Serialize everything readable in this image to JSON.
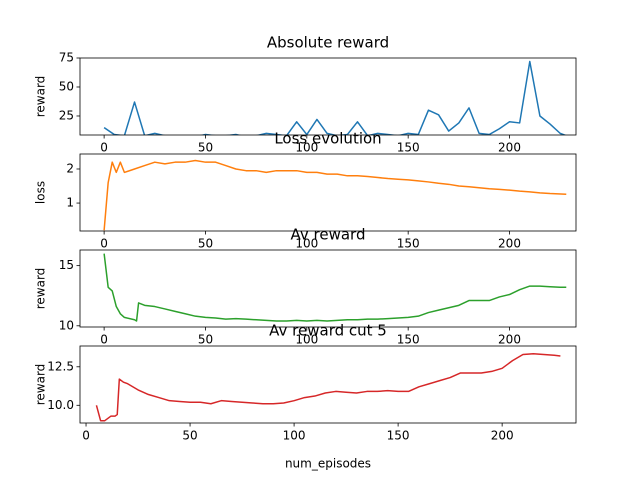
{
  "chart_data": [
    {
      "type": "line",
      "title": "Absolute reward",
      "ylabel": "reward",
      "color": "#1f77b4",
      "x": [
        0,
        5,
        10,
        15,
        20,
        25,
        30,
        35,
        40,
        45,
        50,
        55,
        60,
        65,
        70,
        75,
        80,
        85,
        90,
        95,
        100,
        105,
        110,
        115,
        120,
        125,
        130,
        135,
        140,
        145,
        150,
        155,
        160,
        165,
        170,
        175,
        180,
        185,
        190,
        195,
        200,
        205,
        210,
        215,
        220,
        225,
        228
      ],
      "values": [
        15,
        9,
        8,
        37,
        8,
        10,
        8,
        8,
        8,
        7,
        9,
        8,
        8,
        9,
        7,
        8,
        10,
        9,
        8,
        20,
        9,
        22,
        10,
        8,
        9,
        20,
        8,
        10,
        9,
        8,
        10,
        9,
        30,
        26,
        12,
        19,
        32,
        10,
        9,
        14,
        20,
        19,
        72,
        25,
        18,
        10,
        8
      ],
      "xlim": [
        -11.9,
        232.8
      ],
      "ylim": [
        8.6,
        75
      ],
      "xticks": [
        0,
        50,
        100,
        150,
        200
      ],
      "yticks": [
        25,
        50,
        75
      ]
    },
    {
      "type": "line",
      "title": "Loss evolution",
      "ylabel": "loss",
      "color": "#ff7f0e",
      "x": [
        0,
        2,
        4,
        6,
        8,
        10,
        15,
        20,
        25,
        30,
        35,
        40,
        45,
        50,
        55,
        60,
        65,
        70,
        75,
        80,
        85,
        90,
        95,
        100,
        105,
        110,
        115,
        120,
        125,
        130,
        135,
        140,
        145,
        150,
        155,
        160,
        165,
        170,
        175,
        180,
        185,
        190,
        195,
        200,
        205,
        210,
        215,
        220,
        228
      ],
      "values": [
        0.2,
        1.6,
        2.2,
        1.9,
        2.2,
        1.9,
        2.0,
        2.1,
        2.2,
        2.15,
        2.2,
        2.2,
        2.25,
        2.2,
        2.2,
        2.1,
        2.0,
        1.95,
        1.95,
        1.9,
        1.95,
        1.95,
        1.95,
        1.9,
        1.9,
        1.85,
        1.85,
        1.8,
        1.8,
        1.78,
        1.75,
        1.72,
        1.7,
        1.68,
        1.65,
        1.62,
        1.58,
        1.55,
        1.5,
        1.48,
        1.45,
        1.42,
        1.4,
        1.38,
        1.35,
        1.33,
        1.3,
        1.28,
        1.26
      ],
      "xlim": [
        -11.9,
        232.8
      ],
      "ylim": [
        0.18,
        2.44
      ],
      "xticks": [
        0,
        50,
        100,
        150,
        200
      ],
      "yticks": [
        1,
        2
      ]
    },
    {
      "type": "line",
      "title": "Av reward",
      "ylabel": "reward",
      "color": "#2ca02c",
      "x": [
        0,
        2,
        4,
        6,
        8,
        10,
        15,
        16,
        17,
        20,
        25,
        30,
        35,
        40,
        45,
        50,
        55,
        60,
        65,
        70,
        75,
        80,
        85,
        90,
        95,
        100,
        105,
        110,
        115,
        120,
        125,
        130,
        135,
        140,
        145,
        150,
        155,
        160,
        165,
        170,
        175,
        180,
        185,
        190,
        195,
        200,
        205,
        210,
        215,
        220,
        225,
        228
      ],
      "values": [
        16,
        13.2,
        12.9,
        11.6,
        11.0,
        10.7,
        10.5,
        10.4,
        11.9,
        11.7,
        11.6,
        11.4,
        11.2,
        11.0,
        10.8,
        10.7,
        10.65,
        10.55,
        10.6,
        10.55,
        10.5,
        10.45,
        10.4,
        10.4,
        10.45,
        10.4,
        10.45,
        10.4,
        10.45,
        10.5,
        10.5,
        10.55,
        10.55,
        10.6,
        10.65,
        10.7,
        10.8,
        11.1,
        11.3,
        11.5,
        11.7,
        12.1,
        12.1,
        12.1,
        12.4,
        12.6,
        13.0,
        13.3,
        13.3,
        13.25,
        13.2,
        13.2
      ],
      "xlim": [
        -11.9,
        232.8
      ],
      "ylim": [
        9.9,
        16.3
      ],
      "xticks": [
        0,
        50,
        100,
        150,
        200
      ],
      "yticks": [
        10,
        15
      ]
    },
    {
      "type": "line",
      "title": "Av reward cut 5",
      "ylabel": "reward",
      "xlabel": "num_episodes",
      "color": "#d62728",
      "x": [
        5,
        7,
        9,
        12,
        14,
        15,
        16,
        18,
        20,
        25,
        30,
        35,
        40,
        45,
        50,
        55,
        60,
        65,
        70,
        75,
        80,
        85,
        90,
        95,
        100,
        105,
        110,
        115,
        120,
        125,
        130,
        135,
        140,
        145,
        150,
        155,
        160,
        165,
        170,
        175,
        180,
        185,
        190,
        195,
        200,
        205,
        210,
        215,
        220,
        225,
        228
      ],
      "values": [
        10.0,
        9.0,
        9.0,
        9.3,
        9.3,
        9.4,
        11.7,
        11.5,
        11.4,
        11.0,
        10.7,
        10.5,
        10.3,
        10.25,
        10.2,
        10.2,
        10.1,
        10.3,
        10.25,
        10.2,
        10.15,
        10.1,
        10.1,
        10.15,
        10.3,
        10.5,
        10.6,
        10.8,
        10.9,
        10.85,
        10.8,
        10.9,
        10.9,
        10.95,
        10.9,
        10.9,
        11.2,
        11.4,
        11.6,
        11.8,
        12.1,
        12.1,
        12.1,
        12.2,
        12.4,
        12.9,
        13.3,
        13.35,
        13.3,
        13.25,
        13.2
      ],
      "xlim": [
        -2.9,
        235.5
      ],
      "ylim": [
        8.85,
        13.85
      ],
      "xticks": [
        0,
        50,
        100,
        150,
        200
      ],
      "yticks": [
        {
          "value": 10,
          "label": "10.0"
        },
        {
          "value": 12.5,
          "label": "12.5"
        }
      ]
    }
  ]
}
